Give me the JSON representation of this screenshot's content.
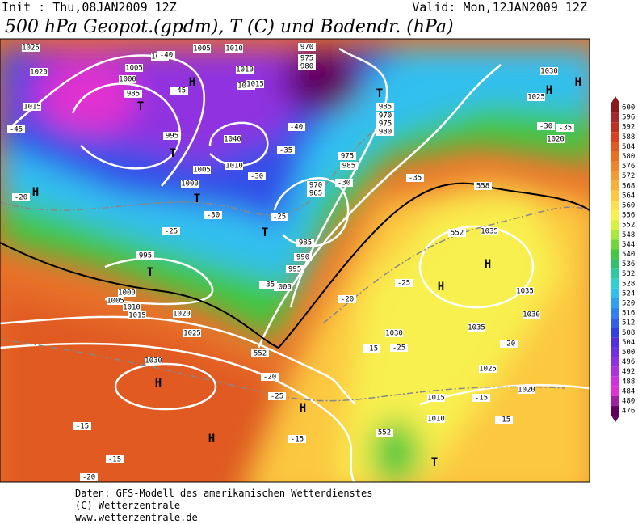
{
  "header": {
    "init": "Init : Thu,08JAN2009 12Z",
    "valid": "Valid: Mon,12JAN2009 12Z",
    "title": "500 hPa Geopot.(gpdm), T (C) und Bodendr. (hPa)"
  },
  "map_labels": [
    "1025",
    "1020",
    "1015",
    "1010",
    "1005",
    "1000",
    "985",
    "995",
    "1010",
    "1015",
    "1040",
    "1005",
    "1000",
    "1010",
    "970",
    "975",
    "980",
    "985",
    "970",
    "975",
    "980",
    "985",
    "975",
    "970",
    "965",
    "985",
    "990",
    "995",
    "1000",
    "995",
    "1000",
    "1005",
    "1010",
    "1015",
    "1020",
    "1025",
    "1030",
    "1035",
    "1035",
    "1030",
    "1035",
    "1030",
    "1025",
    "1020",
    "1015",
    "1010",
    "1030",
    "1025",
    "1020",
    "1015",
    "1010",
    "1005",
    "H",
    "H",
    "T",
    "T",
    "T",
    "T",
    "H",
    "H",
    "T",
    "H",
    "H",
    "H",
    "T",
    "H",
    "T",
    "H",
    "H",
    "-45",
    "-40",
    "-45",
    "-40",
    "-35",
    "-30",
    "-25",
    "-35",
    "-30",
    "-20",
    "-25",
    "-30",
    "-35",
    "-25",
    "-20",
    "-15",
    "-15",
    "-20",
    "-25",
    "-20",
    "-25",
    "-15",
    "-15",
    "-15",
    "-15",
    "-30",
    "-35",
    "-20",
    "552",
    "552",
    "558",
    "552"
  ],
  "colorbar": {
    "levels": [
      600,
      596,
      592,
      588,
      584,
      580,
      576,
      572,
      568,
      564,
      560,
      556,
      552,
      548,
      544,
      540,
      536,
      532,
      528,
      524,
      520,
      516,
      512,
      508,
      504,
      500,
      496,
      492,
      488,
      484,
      480,
      476
    ],
    "colors": [
      "#8b1a1a",
      "#a52a2a",
      "#c03020",
      "#d84020",
      "#e05a20",
      "#e87020",
      "#f08428",
      "#f49a30",
      "#f8b038",
      "#fcc840",
      "#fde050",
      "#f8f050",
      "#d8f040",
      "#a8e838",
      "#70d838",
      "#40c840",
      "#30c070",
      "#30c8a0",
      "#30d0d0",
      "#30c0f0",
      "#30a0f0",
      "#3080f0",
      "#3060e8",
      "#3040e0",
      "#5030e0",
      "#7030e0",
      "#9030e0",
      "#b030e0",
      "#d030e0",
      "#e030d0",
      "#a020a0",
      "#600060"
    ]
  },
  "footer": [
    "Daten: GFS-Modell des amerikanischen Wetterdienstes",
    "(C) Wetterzentrale",
    "www.wetterzentrale.de"
  ]
}
